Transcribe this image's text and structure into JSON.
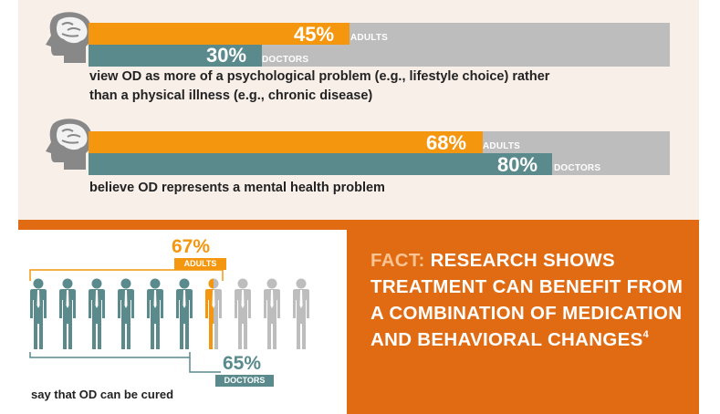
{
  "stats": [
    {
      "adults_pct": "45%",
      "adults_label": "ADULTS",
      "doctors_pct": "30%",
      "doctors_label": "DOCTORS",
      "adults_fraction": 0.45,
      "doctors_fraction": 0.3,
      "text_line1": "view OD as more of a psychological problem (e.g., lifestyle choice) rather",
      "text_line2": "than a physical illness (e.g., chronic disease)"
    },
    {
      "adults_pct": "68%",
      "adults_label": "ADULTS",
      "doctors_pct": "80%",
      "doctors_label": "DOCTORS",
      "adults_fraction": 0.68,
      "doctors_fraction": 0.8,
      "text_line1": "believe OD represents a mental health problem"
    }
  ],
  "cure": {
    "adults_pct": "67%",
    "adults_label": "ADULTS",
    "doctors_pct": "65%",
    "doctors_label": "DOCTORS",
    "text": "say that OD can be cured",
    "figures_total": 10,
    "figures_highlighted": 6.5
  },
  "fact": {
    "label": "FACT:",
    "body": "RESEARCH SHOWS TREATMENT CAN BENEFIT FROM A COMBINATION OF MEDICATION AND BEHAVIORAL CHANGES",
    "footnote": "4"
  },
  "colors": {
    "adults": "#f5960f",
    "doctors": "#5a8a8c",
    "track": "#bdbdbd",
    "fact_bg": "#e06b12",
    "panel_bg": "#f8efe9"
  }
}
